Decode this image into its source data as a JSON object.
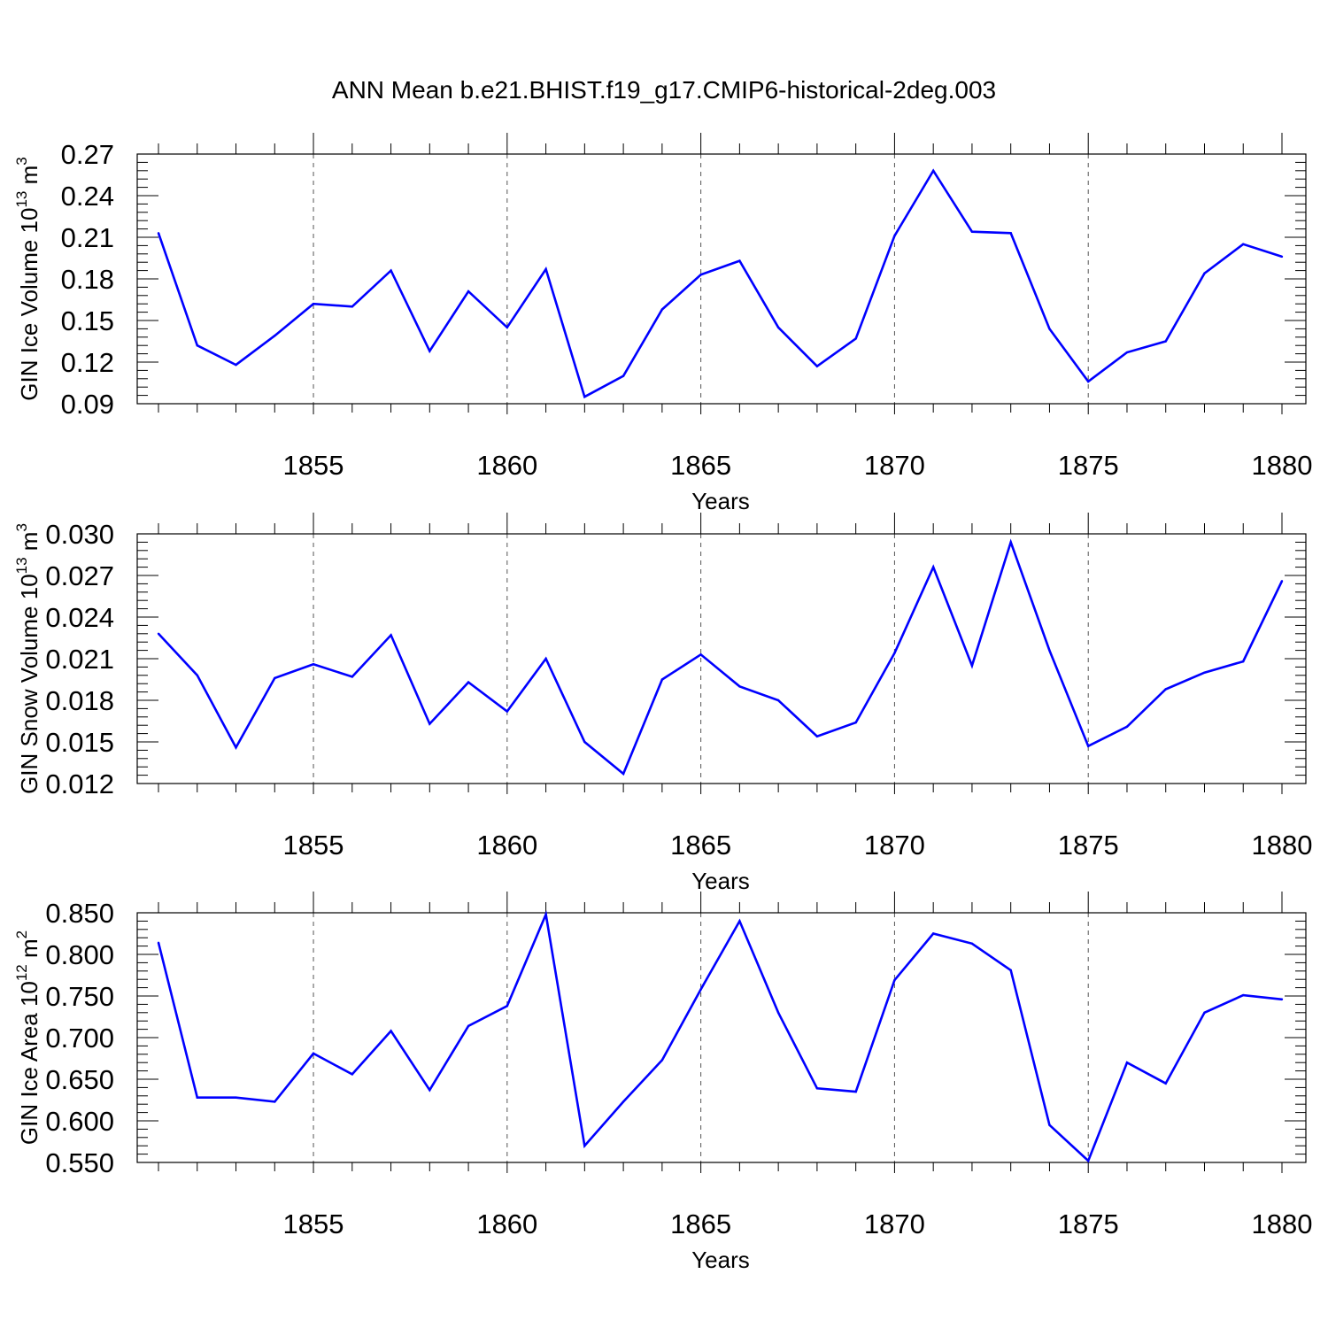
{
  "title": "ANN Mean b.e21.BHIST.f19_g17.CMIP6-historical-2deg.003",
  "colors": {
    "line": "#0000ff",
    "axis": "#000000",
    "grid": "#555555"
  },
  "chart_data": [
    {
      "type": "line",
      "name": "ice-volume",
      "ylabel": "GIN Ice Volume 10",
      "ylabel_exp": "13",
      "ylabel_unit": " m",
      "ylabel_unit_exp": "3",
      "xlabel": "Years",
      "xlim": [
        1851,
        1880
      ],
      "ylim": [
        0.09,
        0.27
      ],
      "yticks": [
        "0.09",
        "0.12",
        "0.15",
        "0.18",
        "0.21",
        "0.24",
        "0.27"
      ],
      "xticks": [
        "1855",
        "1860",
        "1865",
        "1870",
        "1875",
        "1880"
      ],
      "x": [
        1851,
        1852,
        1853,
        1854,
        1855,
        1856,
        1857,
        1858,
        1859,
        1860,
        1861,
        1862,
        1863,
        1864,
        1865,
        1866,
        1867,
        1868,
        1869,
        1870,
        1871,
        1872,
        1873,
        1874,
        1875,
        1876,
        1877,
        1878,
        1879,
        1880
      ],
      "values": [
        0.213,
        0.132,
        0.118,
        0.139,
        0.162,
        0.16,
        0.186,
        0.128,
        0.171,
        0.145,
        0.187,
        0.095,
        0.11,
        0.158,
        0.183,
        0.193,
        0.145,
        0.117,
        0.137,
        0.211,
        0.258,
        0.214,
        0.213,
        0.144,
        0.106,
        0.127,
        0.135,
        0.184,
        0.205,
        0.196
      ]
    },
    {
      "type": "line",
      "name": "snow-volume",
      "ylabel": "GIN Snow Volume 10",
      "ylabel_exp": "13",
      "ylabel_unit": " m",
      "ylabel_unit_exp": "3",
      "xlabel": "Years",
      "xlim": [
        1851,
        1880
      ],
      "ylim": [
        0.012,
        0.03
      ],
      "yticks": [
        "0.012",
        "0.015",
        "0.018",
        "0.021",
        "0.024",
        "0.027",
        "0.030"
      ],
      "xticks": [
        "1855",
        "1860",
        "1865",
        "1870",
        "1875",
        "1880"
      ],
      "x": [
        1851,
        1852,
        1853,
        1854,
        1855,
        1856,
        1857,
        1858,
        1859,
        1860,
        1861,
        1862,
        1863,
        1864,
        1865,
        1866,
        1867,
        1868,
        1869,
        1870,
        1871,
        1872,
        1873,
        1874,
        1875,
        1876,
        1877,
        1878,
        1879,
        1880
      ],
      "values": [
        0.0228,
        0.0198,
        0.0146,
        0.0196,
        0.0206,
        0.0197,
        0.0227,
        0.0163,
        0.0193,
        0.0172,
        0.021,
        0.015,
        0.0127,
        0.0195,
        0.0213,
        0.019,
        0.018,
        0.0154,
        0.0164,
        0.0214,
        0.0276,
        0.0205,
        0.0294,
        0.0216,
        0.0147,
        0.0161,
        0.0188,
        0.02,
        0.0208,
        0.0266
      ]
    },
    {
      "type": "line",
      "name": "ice-area",
      "ylabel": "GIN Ice Area 10",
      "ylabel_exp": "12",
      "ylabel_unit": " m",
      "ylabel_unit_exp": "2",
      "xlabel": "Years",
      "xlim": [
        1851,
        1880
      ],
      "ylim": [
        0.55,
        0.85
      ],
      "yticks": [
        "0.550",
        "0.600",
        "0.650",
        "0.700",
        "0.750",
        "0.800",
        "0.850"
      ],
      "xticks": [
        "1855",
        "1860",
        "1865",
        "1870",
        "1875",
        "1880"
      ],
      "x": [
        1851,
        1852,
        1853,
        1854,
        1855,
        1856,
        1857,
        1858,
        1859,
        1860,
        1861,
        1862,
        1863,
        1864,
        1865,
        1866,
        1867,
        1868,
        1869,
        1870,
        1871,
        1872,
        1873,
        1874,
        1875,
        1876,
        1877,
        1878,
        1879,
        1880
      ],
      "values": [
        0.814,
        0.628,
        0.628,
        0.623,
        0.681,
        0.656,
        0.708,
        0.637,
        0.714,
        0.738,
        0.848,
        0.57,
        0.623,
        0.673,
        0.758,
        0.84,
        0.73,
        0.639,
        0.635,
        0.769,
        0.825,
        0.813,
        0.781,
        0.595,
        0.552,
        0.67,
        0.645,
        0.73,
        0.751,
        0.746
      ]
    }
  ]
}
